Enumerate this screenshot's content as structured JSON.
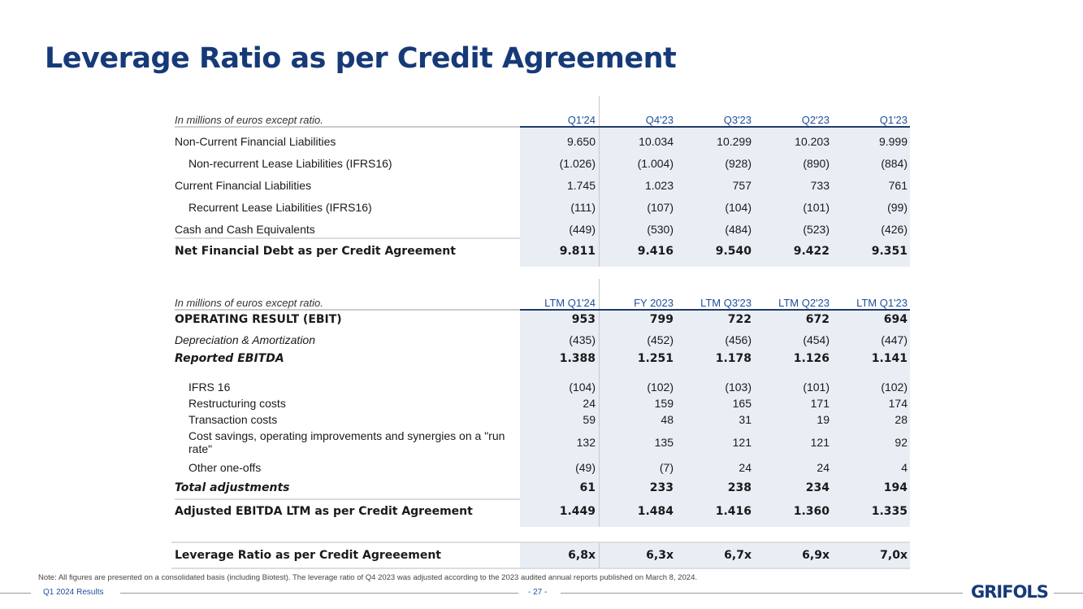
{
  "title": "Leverage Ratio as per Credit Agreement",
  "table1": {
    "caption": "In millions of euros except ratio.",
    "columns": [
      "Q1'24",
      "Q4'23",
      "Q3'23",
      "Q2'23",
      "Q1'23"
    ],
    "rows": [
      {
        "label": "Non-Current Financial Liabilities",
        "values": [
          "9.650",
          "10.034",
          "10.299",
          "10.203",
          "9.999"
        ]
      },
      {
        "label": "Non-recurrent Lease Liabilities (IFRS16)",
        "values": [
          "(1.026)",
          "(1.004)",
          "(928)",
          "(890)",
          "(884)"
        ],
        "indent": true
      },
      {
        "label": "Current Financial Liabilities",
        "values": [
          "1.745",
          "1.023",
          "757",
          "733",
          "761"
        ]
      },
      {
        "label": "Recurrent Lease Liabilities (IFRS16)",
        "values": [
          "(111)",
          "(107)",
          "(104)",
          "(101)",
          "(99)"
        ],
        "indent": true
      },
      {
        "label": "Cash and Cash Equivalents",
        "values": [
          "(449)",
          "(530)",
          "(484)",
          "(523)",
          "(426)"
        ]
      },
      {
        "label": "Net Financial Debt as per Credit Agreement",
        "values": [
          "9.811",
          "9.416",
          "9.540",
          "9.422",
          "9.351"
        ],
        "bold": true
      }
    ]
  },
  "table2": {
    "caption": "In millions of euros except ratio.",
    "columns": [
      "LTM Q1'24",
      "FY 2023",
      "LTM Q3'23",
      "LTM Q2'23",
      "LTM Q1'23"
    ],
    "rows": [
      {
        "label": "OPERATING RESULT (EBIT)",
        "values": [
          "953",
          "799",
          "722",
          "672",
          "694"
        ],
        "bold": true
      },
      {
        "label": "Depreciation & Amortization",
        "values": [
          "(435)",
          "(452)",
          "(456)",
          "(454)",
          "(447)"
        ],
        "italic": true
      },
      {
        "label": "Reported EBITDA",
        "values": [
          "1.388",
          "1.251",
          "1.178",
          "1.126",
          "1.141"
        ],
        "bold": true,
        "italic": true
      },
      {
        "label": "IFRS 16",
        "values": [
          "(104)",
          "(102)",
          "(103)",
          "(101)",
          "(102)"
        ],
        "indent": true
      },
      {
        "label": "Restructuring costs",
        "values": [
          "24",
          "159",
          "165",
          "171",
          "174"
        ],
        "indent": true
      },
      {
        "label": "Transaction costs",
        "values": [
          "59",
          "48",
          "31",
          "19",
          "28"
        ],
        "indent": true
      },
      {
        "label": "Cost savings, operating improvements and synergies on a \"run rate\"",
        "values": [
          "132",
          "135",
          "121",
          "121",
          "92"
        ],
        "indent": true
      },
      {
        "label": "Other one-offs",
        "values": [
          "(49)",
          "(7)",
          "24",
          "24",
          "4"
        ],
        "indent": true
      },
      {
        "label": "Total adjustments",
        "values": [
          "61",
          "233",
          "238",
          "234",
          "194"
        ],
        "bold": true,
        "italic": true
      },
      {
        "label": "Adjusted EBITDA LTM as per Credit Agreement",
        "values": [
          "1.449",
          "1.484",
          "1.416",
          "1.360",
          "1.335"
        ],
        "bold": true
      }
    ]
  },
  "leverage": {
    "label": "Leverage Ratio as per Credit Agreeement",
    "values": [
      "6,8x",
      "6,3x",
      "6,7x",
      "6,9x",
      "7,0x"
    ]
  },
  "note": "Note: All figures are presented on a consolidated basis (including Biotest). The leverage ratio of Q4 2023 was adjusted according to the 2023 audited annual reports published on March 8, 2024.",
  "footer": {
    "left": "Q1 2024 Results",
    "page": "- 27 -",
    "logo": "GRIFOLS"
  }
}
